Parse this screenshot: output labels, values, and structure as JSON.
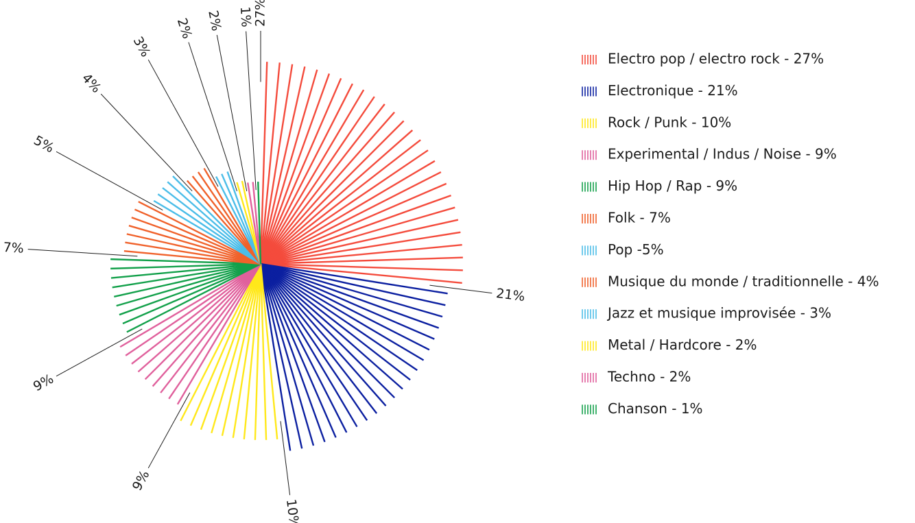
{
  "chart_data": {
    "type": "pie",
    "categories": [
      "Electro pop / electro rock - 27%",
      "Electronique - 21%",
      "Rock / Punk - 10%",
      "Experimental / Indus / Noise - 9%",
      "Hip Hop / Rap - 9%",
      "Folk - 7%",
      "Pop -5%",
      "Musique du monde / traditionnelle - 4%",
      "Jazz et musique improvisée - 3%",
      "Metal / Hardcore - 2%",
      "Techno - 2%",
      "Chanson - 1%"
    ],
    "values": [
      27,
      21,
      10,
      9,
      9,
      7,
      5,
      4,
      3,
      2,
      2,
      1
    ],
    "value_labels": [
      "27%",
      "21%",
      "10%",
      "9%",
      "9%",
      "7%",
      "5%",
      "4%",
      "3%",
      "2%",
      "2%",
      "1%"
    ],
    "colors": [
      "#f44b3c",
      "#0b1fa0",
      "#ffe81a",
      "#e0609c",
      "#12a04a",
      "#f0612a",
      "#4bbde8",
      "#f0612a",
      "#4bbde8",
      "#ffe81a",
      "#e0609c",
      "#12a04a"
    ],
    "legend": "right"
  }
}
